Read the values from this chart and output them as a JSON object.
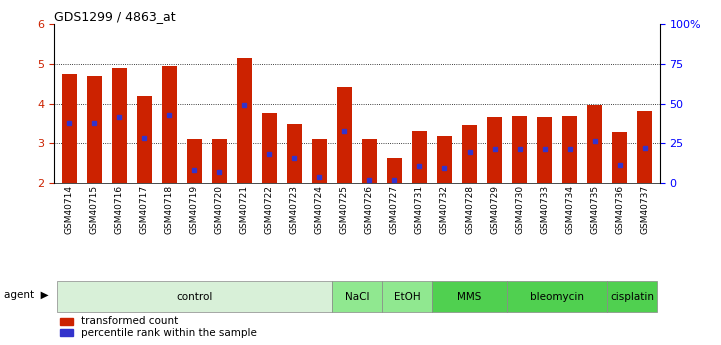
{
  "title": "GDS1299 / 4863_at",
  "samples": [
    "GSM40714",
    "GSM40715",
    "GSM40716",
    "GSM40717",
    "GSM40718",
    "GSM40719",
    "GSM40720",
    "GSM40721",
    "GSM40722",
    "GSM40723",
    "GSM40724",
    "GSM40725",
    "GSM40726",
    "GSM40727",
    "GSM40731",
    "GSM40732",
    "GSM40728",
    "GSM40729",
    "GSM40730",
    "GSM40733",
    "GSM40734",
    "GSM40735",
    "GSM40736",
    "GSM40737"
  ],
  "bar_heights": [
    4.75,
    4.7,
    4.9,
    4.18,
    4.95,
    3.1,
    3.1,
    5.15,
    3.75,
    3.48,
    3.1,
    4.42,
    3.1,
    2.62,
    3.3,
    3.18,
    3.46,
    3.65,
    3.68,
    3.65,
    3.68,
    3.95,
    3.27,
    3.82
  ],
  "blue_markers": [
    3.52,
    3.5,
    3.65,
    3.12,
    3.7,
    2.32,
    2.28,
    3.95,
    2.72,
    2.62,
    2.15,
    3.3,
    2.08,
    2.08,
    2.42,
    2.38,
    2.78,
    2.85,
    2.85,
    2.85,
    2.85,
    3.05,
    2.45,
    2.88
  ],
  "ymin": 2,
  "ymax": 6,
  "yticks": [
    2,
    3,
    4,
    5,
    6
  ],
  "y2ticks": [
    0,
    25,
    50,
    75,
    100
  ],
  "y2ticklabels": [
    "0",
    "25",
    "50",
    "75",
    "100%"
  ],
  "bar_color": "#cc2200",
  "marker_color": "#3333cc",
  "agents": [
    {
      "label": "control",
      "start": 0,
      "end": 11,
      "color": "#d8f0d8"
    },
    {
      "label": "NaCl",
      "start": 11,
      "end": 13,
      "color": "#90e890"
    },
    {
      "label": "EtOH",
      "start": 13,
      "end": 15,
      "color": "#90e890"
    },
    {
      "label": "MMS",
      "start": 15,
      "end": 18,
      "color": "#50d050"
    },
    {
      "label": "bleomycin",
      "start": 18,
      "end": 22,
      "color": "#50d050"
    },
    {
      "label": "cisplatin",
      "start": 22,
      "end": 24,
      "color": "#50d050"
    }
  ],
  "legend_items": [
    {
      "label": "transformed count",
      "color": "#cc2200"
    },
    {
      "label": "percentile rank within the sample",
      "color": "#3333cc"
    }
  ]
}
